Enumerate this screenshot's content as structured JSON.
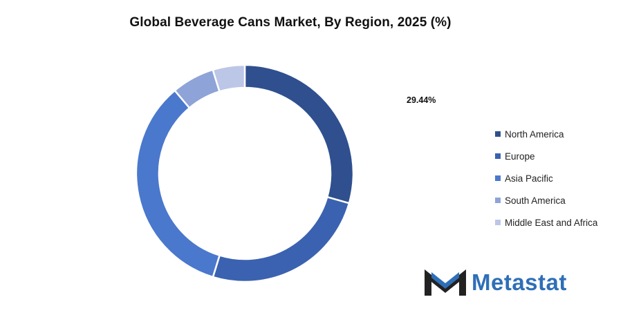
{
  "chart_data": {
    "type": "pie",
    "title": "Global Beverage Cans Market, By Region, 2025 (%)",
    "categories": [
      "North America",
      "Europe",
      "Asia Pacific",
      "South America",
      "Middle East and Africa"
    ],
    "values": [
      29.44,
      25.3,
      34.1,
      6.4,
      4.76
    ],
    "data_labels": [
      "29.44%"
    ],
    "legend_position": "right",
    "donut": true
  },
  "colors": [
    "#2f4f8f",
    "#3b62b0",
    "#4a78cc",
    "#8ea3d7",
    "#bcc6e6"
  ],
  "brand": {
    "name": "Metastat",
    "icon": "metastat-logo-icon"
  }
}
